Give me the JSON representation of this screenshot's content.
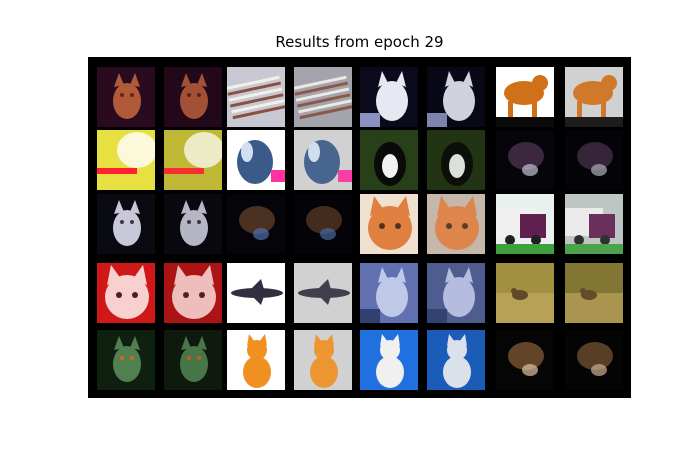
{
  "figure": {
    "title": "Results from epoch 29"
  },
  "grid": {
    "rows": [
      {
        "pairs": [
          {
            "name": "cat",
            "bg": "#2a0a1e",
            "fg": "#b05a3a",
            "accent": "#6a2414",
            "style": "cat-dark"
          },
          {
            "name": "ship",
            "bg": "#c8c8d2",
            "fg": "#8a5040",
            "accent": "#f4f0e8",
            "style": "stripes"
          },
          {
            "name": "cat",
            "bg": "#0a0a1c",
            "fg": "#e8e8f2",
            "accent": "#8a90c0",
            "style": "cat-white"
          },
          {
            "name": "cat",
            "bg": "#ffffff",
            "fg": "#d07018",
            "accent": "#0a0a0a",
            "style": "standing"
          }
        ]
      },
      {
        "pairs": [
          {
            "name": "blur",
            "bg": "#e8e040",
            "fg": "#ff2030",
            "accent": "#ffffff",
            "style": "bright"
          },
          {
            "name": "bird",
            "bg": "#ffffff",
            "fg": "#3a5a8a",
            "accent": "#ff30a0",
            "style": "splash"
          },
          {
            "name": "cat",
            "bg": "#284018",
            "fg": "#f2f2f2",
            "accent": "#0a0a0a",
            "style": "tuxedo"
          },
          {
            "name": "dark",
            "bg": "#05050a",
            "fg": "#604060",
            "accent": "#c0c0d0",
            "style": "shadow"
          }
        ]
      },
      {
        "pairs": [
          {
            "name": "cat",
            "bg": "#0a0a12",
            "fg": "#c8c8d8",
            "accent": "#403848",
            "style": "cat-dark"
          },
          {
            "name": "cat",
            "bg": "#04040a",
            "fg": "#7a5030",
            "accent": "#5070b0",
            "style": "shadow"
          },
          {
            "name": "cat",
            "bg": "#f0e0d0",
            "fg": "#e08040",
            "accent": "#503020",
            "style": "face"
          },
          {
            "name": "truck",
            "bg": "#e8f0f0",
            "fg": "#602050",
            "accent": "#40a040",
            "style": "truck"
          }
        ]
      },
      {
        "pairs": [
          {
            "name": "cat",
            "bg": "#d01818",
            "fg": "#f8d0d0",
            "accent": "#4a2020",
            "style": "face"
          },
          {
            "name": "plane",
            "bg": "#ffffff",
            "fg": "#303040",
            "accent": "#5070c0",
            "style": "plane"
          },
          {
            "name": "cat",
            "bg": "#6070b0",
            "fg": "#c0c8e8",
            "accent": "#304070",
            "style": "cat-white"
          },
          {
            "name": "bird",
            "bg": "#a09040",
            "fg": "#604828",
            "accent": "#c0a860",
            "style": "field"
          }
        ]
      },
      {
        "pairs": [
          {
            "name": "cat",
            "bg": "#102010",
            "fg": "#508050",
            "accent": "#e06020",
            "style": "cat-dark"
          },
          {
            "name": "cat",
            "bg": "#ffffff",
            "fg": "#f09020",
            "accent": "#c06010",
            "style": "sitting"
          },
          {
            "name": "cat",
            "bg": "#2070e0",
            "fg": "#f0f0f0",
            "accent": "#103060",
            "style": "sitting"
          },
          {
            "name": "cat",
            "bg": "#050505",
            "fg": "#a07040",
            "accent": "#e0c0a0",
            "style": "shadow"
          }
        ]
      }
    ]
  }
}
